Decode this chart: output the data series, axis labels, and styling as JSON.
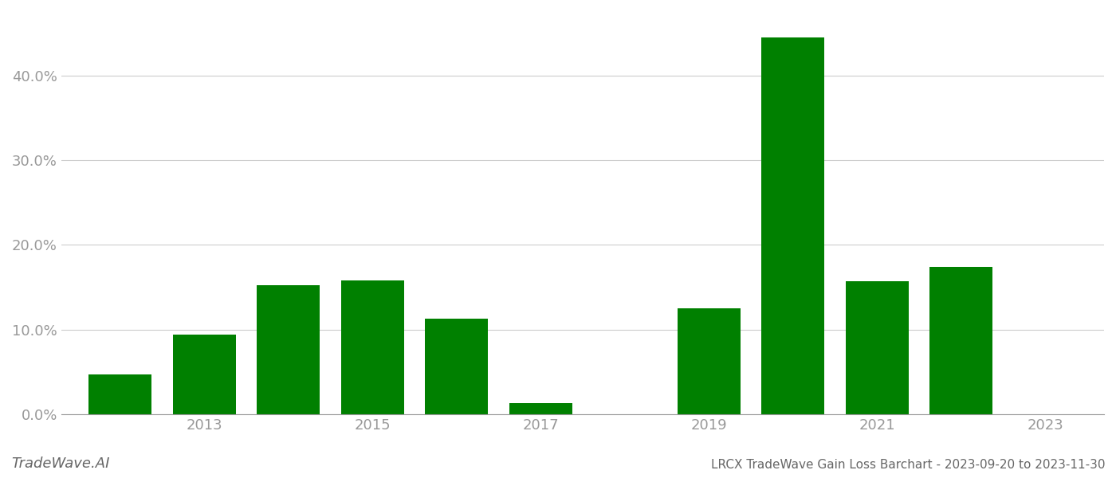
{
  "bar_years": [
    2012,
    2013,
    2014,
    2015,
    2016,
    2017,
    2018,
    2019,
    2020,
    2021,
    2022
  ],
  "values": [
    0.047,
    0.094,
    0.152,
    0.158,
    0.113,
    0.013,
    0.0,
    0.125,
    0.445,
    0.157,
    0.174
  ],
  "bar_color": "#008000",
  "background_color": "#ffffff",
  "grid_color": "#cccccc",
  "tick_color": "#999999",
  "yticks": [
    0.0,
    0.1,
    0.2,
    0.3,
    0.4
  ],
  "xtick_positions": [
    2013,
    2015,
    2017,
    2019,
    2021,
    2023
  ],
  "xtick_labels": [
    "2013",
    "2015",
    "2017",
    "2019",
    "2021",
    "2023"
  ],
  "xlim": [
    2011.3,
    2023.7
  ],
  "ylim": [
    0,
    0.475
  ],
  "title": "LRCX TradeWave Gain Loss Barchart - 2023-09-20 to 2023-11-30",
  "watermark": "TradeWave.AI",
  "title_fontsize": 11,
  "watermark_fontsize": 13,
  "tick_fontsize": 13,
  "bar_width": 0.75
}
